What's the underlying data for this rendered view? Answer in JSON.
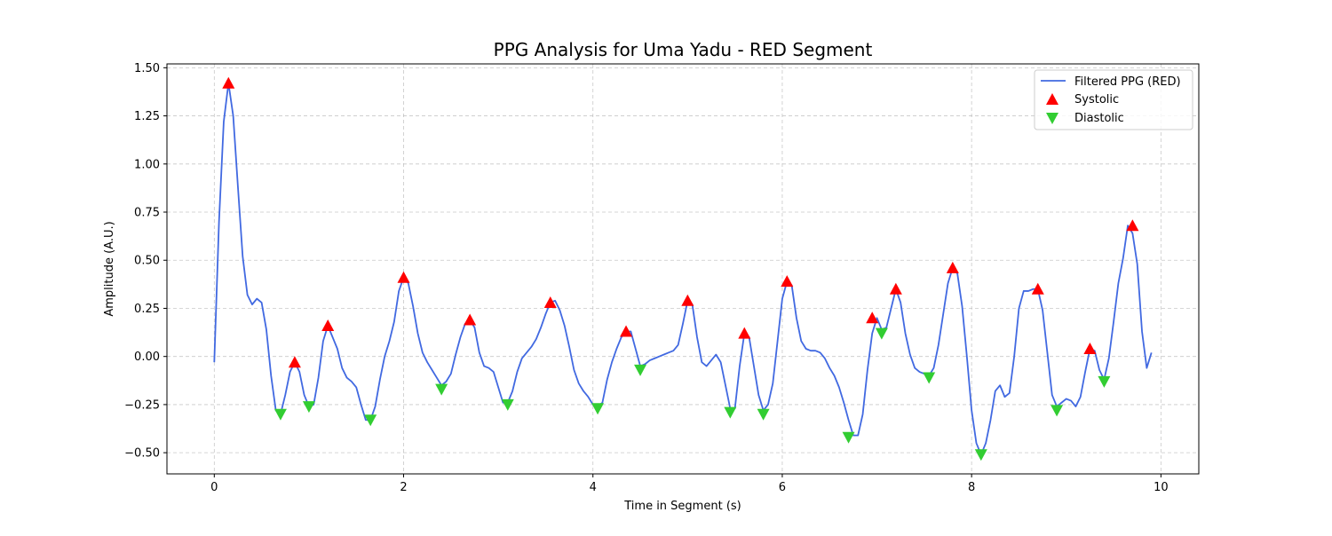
{
  "chart_data": {
    "type": "line",
    "title": "PPG Analysis for Uma Yadu - RED Segment",
    "xlabel": "Time in Segment (s)",
    "ylabel": "Amplitude (A.U.)",
    "xlim": [
      -0.5,
      10.4
    ],
    "ylim": [
      -0.61,
      1.52
    ],
    "x_ticks": [
      0,
      2,
      4,
      6,
      8,
      10
    ],
    "x_tick_labels": [
      "0",
      "2",
      "4",
      "6",
      "8",
      "10"
    ],
    "y_ticks": [
      -0.5,
      -0.25,
      0.0,
      0.25,
      0.5,
      0.75,
      1.0,
      1.25,
      1.5
    ],
    "y_tick_labels": [
      "−0.50",
      "−0.25",
      "0.00",
      "0.25",
      "0.50",
      "0.75",
      "1.00",
      "1.25",
      "1.50"
    ],
    "grid": true,
    "legend_position": "top-right",
    "colors": {
      "line": "#4169e1",
      "systolic": "#ff0000",
      "diastolic": "#32cd32",
      "grid": "#b0b0b0"
    },
    "series": [
      {
        "name": "Filtered PPG (RED)",
        "type": "line",
        "x": [
          0.0,
          0.05,
          0.1,
          0.15,
          0.2,
          0.25,
          0.3,
          0.35,
          0.4,
          0.45,
          0.5,
          0.55,
          0.6,
          0.65,
          0.7,
          0.75,
          0.8,
          0.85,
          0.9,
          0.95,
          1.0,
          1.05,
          1.1,
          1.15,
          1.2,
          1.25,
          1.3,
          1.35,
          1.4,
          1.45,
          1.5,
          1.55,
          1.6,
          1.65,
          1.7,
          1.75,
          1.8,
          1.85,
          1.9,
          1.95,
          2.0,
          2.05,
          2.1,
          2.15,
          2.2,
          2.25,
          2.3,
          2.35,
          2.4,
          2.45,
          2.5,
          2.55,
          2.6,
          2.65,
          2.7,
          2.75,
          2.8,
          2.85,
          2.9,
          2.95,
          3.0,
          3.05,
          3.1,
          3.15,
          3.2,
          3.25,
          3.3,
          3.35,
          3.4,
          3.45,
          3.5,
          3.55,
          3.6,
          3.65,
          3.7,
          3.75,
          3.8,
          3.85,
          3.9,
          3.95,
          4.0,
          4.05,
          4.1,
          4.15,
          4.2,
          4.25,
          4.3,
          4.35,
          4.4,
          4.45,
          4.5,
          4.55,
          4.6,
          4.65,
          4.7,
          4.75,
          4.8,
          4.85,
          4.9,
          4.95,
          5.0,
          5.05,
          5.1,
          5.15,
          5.2,
          5.25,
          5.3,
          5.35,
          5.4,
          5.45,
          5.5,
          5.55,
          5.6,
          5.65,
          5.7,
          5.75,
          5.8,
          5.85,
          5.9,
          5.95,
          6.0,
          6.05,
          6.1,
          6.15,
          6.2,
          6.25,
          6.3,
          6.35,
          6.4,
          6.45,
          6.5,
          6.55,
          6.6,
          6.65,
          6.7,
          6.75,
          6.8,
          6.85,
          6.9,
          6.95,
          7.0,
          7.05,
          7.1,
          7.15,
          7.2,
          7.25,
          7.3,
          7.35,
          7.4,
          7.45,
          7.5,
          7.55,
          7.6,
          7.65,
          7.7,
          7.75,
          7.8,
          7.85,
          7.9,
          7.95,
          8.0,
          8.05,
          8.1,
          8.15,
          8.2,
          8.25,
          8.3,
          8.35,
          8.4,
          8.45,
          8.5,
          8.55,
          8.6,
          8.65,
          8.7,
          8.75,
          8.8,
          8.85,
          8.9,
          8.95,
          9.0,
          9.05,
          9.1,
          9.15,
          9.2,
          9.25,
          9.3,
          9.35,
          9.4,
          9.45,
          9.5,
          9.55,
          9.6,
          9.65,
          9.7,
          9.75,
          9.8,
          9.85,
          9.9
        ],
        "y": [
          -0.03,
          0.7,
          1.22,
          1.42,
          1.25,
          0.88,
          0.52,
          0.32,
          0.27,
          0.3,
          0.28,
          0.14,
          -0.1,
          -0.28,
          -0.3,
          -0.2,
          -0.08,
          -0.03,
          -0.08,
          -0.2,
          -0.26,
          -0.25,
          -0.11,
          0.08,
          0.16,
          0.1,
          0.04,
          -0.06,
          -0.11,
          -0.13,
          -0.16,
          -0.25,
          -0.33,
          -0.33,
          -0.26,
          -0.12,
          0.0,
          0.08,
          0.18,
          0.34,
          0.41,
          0.38,
          0.26,
          0.12,
          0.02,
          -0.03,
          -0.07,
          -0.11,
          -0.15,
          -0.13,
          -0.09,
          0.01,
          0.1,
          0.17,
          0.19,
          0.15,
          0.02,
          -0.05,
          -0.06,
          -0.08,
          -0.16,
          -0.24,
          -0.24,
          -0.18,
          -0.08,
          -0.01,
          0.02,
          0.05,
          0.09,
          0.15,
          0.22,
          0.28,
          0.29,
          0.24,
          0.16,
          0.05,
          -0.07,
          -0.14,
          -0.18,
          -0.21,
          -0.25,
          -0.26,
          -0.24,
          -0.12,
          -0.03,
          0.04,
          0.1,
          0.13,
          0.13,
          0.04,
          -0.05,
          -0.04,
          -0.02,
          -0.01,
          0.0,
          0.01,
          0.02,
          0.03,
          0.06,
          0.17,
          0.29,
          0.27,
          0.1,
          -0.03,
          -0.05,
          -0.02,
          0.01,
          -0.03,
          -0.15,
          -0.27,
          -0.27,
          -0.05,
          0.12,
          0.1,
          -0.05,
          -0.2,
          -0.28,
          -0.25,
          -0.14,
          0.08,
          0.3,
          0.39,
          0.37,
          0.2,
          0.08,
          0.04,
          0.03,
          0.03,
          0.02,
          -0.01,
          -0.06,
          -0.1,
          -0.16,
          -0.24,
          -0.33,
          -0.41,
          -0.41,
          -0.3,
          -0.07,
          0.12,
          0.2,
          0.14,
          0.15,
          0.25,
          0.35,
          0.28,
          0.12,
          0.01,
          -0.06,
          -0.08,
          -0.09,
          -0.1,
          -0.06,
          0.06,
          0.22,
          0.38,
          0.46,
          0.43,
          0.26,
          0.0,
          -0.28,
          -0.45,
          -0.51,
          -0.45,
          -0.33,
          -0.18,
          -0.15,
          -0.21,
          -0.19,
          0.0,
          0.25,
          0.34,
          0.34,
          0.35,
          0.35,
          0.24,
          0.02,
          -0.2,
          -0.26,
          -0.24,
          -0.22,
          -0.23,
          -0.26,
          -0.21,
          -0.08,
          0.04,
          0.03,
          -0.07,
          -0.12,
          -0.01,
          0.18,
          0.38,
          0.51,
          0.68,
          0.64,
          0.48,
          0.13,
          -0.06,
          0.02
        ]
      },
      {
        "name": "Systolic",
        "type": "scatter",
        "marker": "triangle-up",
        "x": [
          0.15,
          0.85,
          1.2,
          2.0,
          2.7,
          3.55,
          4.35,
          5.0,
          5.6,
          6.05,
          6.95,
          7.2,
          7.8,
          8.7,
          9.25,
          9.7
        ],
        "y": [
          1.42,
          -0.03,
          0.16,
          0.41,
          0.19,
          0.28,
          0.13,
          0.29,
          0.12,
          0.39,
          0.2,
          0.35,
          0.46,
          0.35,
          0.04,
          0.68
        ]
      },
      {
        "name": "Diastolic",
        "type": "scatter",
        "marker": "triangle-down",
        "x": [
          0.7,
          1.0,
          1.65,
          2.4,
          3.1,
          4.05,
          4.5,
          5.45,
          5.8,
          6.7,
          7.05,
          7.55,
          8.1,
          8.9,
          9.4
        ],
        "y": [
          -0.3,
          -0.26,
          -0.33,
          -0.17,
          -0.25,
          -0.27,
          -0.07,
          -0.29,
          -0.3,
          -0.42,
          0.12,
          -0.11,
          -0.51,
          -0.28,
          -0.13
        ]
      }
    ]
  }
}
